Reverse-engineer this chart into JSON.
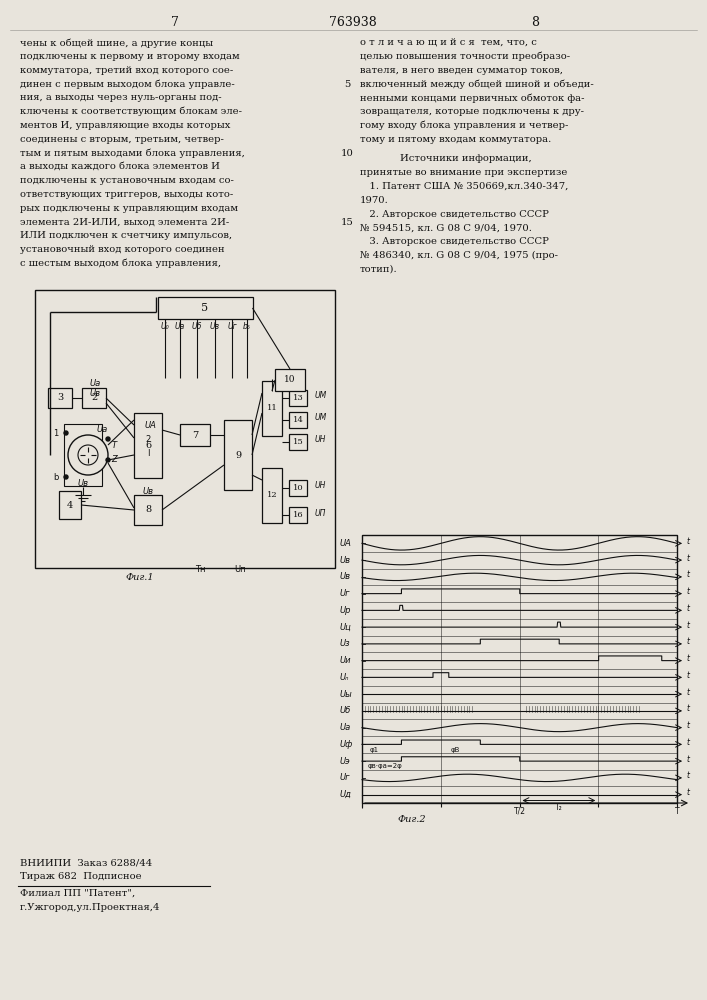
{
  "page_number_left": "7",
  "patent_number": "763938",
  "page_number_right": "8",
  "left_column_text": [
    "чены к общей шине, а другие концы",
    "подключены к первому и второму входам",
    "коммутатора, третий вход которого сое-",
    "динен с первым выходом блока управле-",
    "ния, а выходы через нуль-органы под-",
    "ключены к соответствующим блокам эле-",
    "ментов И, управляющие входы которых",
    "соединены с вторым, третьим, четвер-",
    "тым и пятым выходами блока управления,",
    "а выходы каждого блока элементов И",
    "подключены к установочным входам со-",
    "ответствующих триггеров, выходы кото-",
    "рых подключены к управляющим входам",
    "элемента 2И-ИЛИ, выход элемента 2И-",
    "ИЛИ подключен к счетчику импульсов,",
    "установочный вход которого соединен",
    "с шестым выходом блока управления,"
  ],
  "right_column_text_top": [
    "о т л и ч а ю щ и й с я  тем, что, с",
    "целью повышения точности преобразо-",
    "вателя, в него введен сумматор токов,",
    "включенный между общей шиной и объеди-",
    "ненными концами первичных обмоток фа-",
    "зовращателя, которые подключены к дру-",
    "гому входу блока управления и четвер-",
    "тому и пятому входам коммутатора."
  ],
  "sources_header": "Источники информации,",
  "sources_subheader": "принятые во внимание при экспертизе",
  "source1": "   1. Патент США № 350669,кл.340-347,",
  "source1b": "1970.",
  "source2": "   2. Авторское свидетельство СССР",
  "source2b": "№ 594515, кл. G 08 C 9/04, 1970.",
  "source3": "   3. Авторское свидетельство СССР",
  "source3b": "№ 486340, кл. G 08 C 9/04, 1975 (про-",
  "source3c": "тотип).",
  "bottom_left1": "ВНИИПИ  Заказ 6288/44",
  "bottom_left2": "Тираж 682  Подписное",
  "bottom_left3": "Филиал ПП \"Патент\",",
  "bottom_left4": "г.Ужгород,ул.Проектная,4",
  "bg_color": "#e8e4dc",
  "text_color": "#111111",
  "line_number_5_row": 3,
  "line_number_10_row": 8,
  "line_number_15_row": 13
}
